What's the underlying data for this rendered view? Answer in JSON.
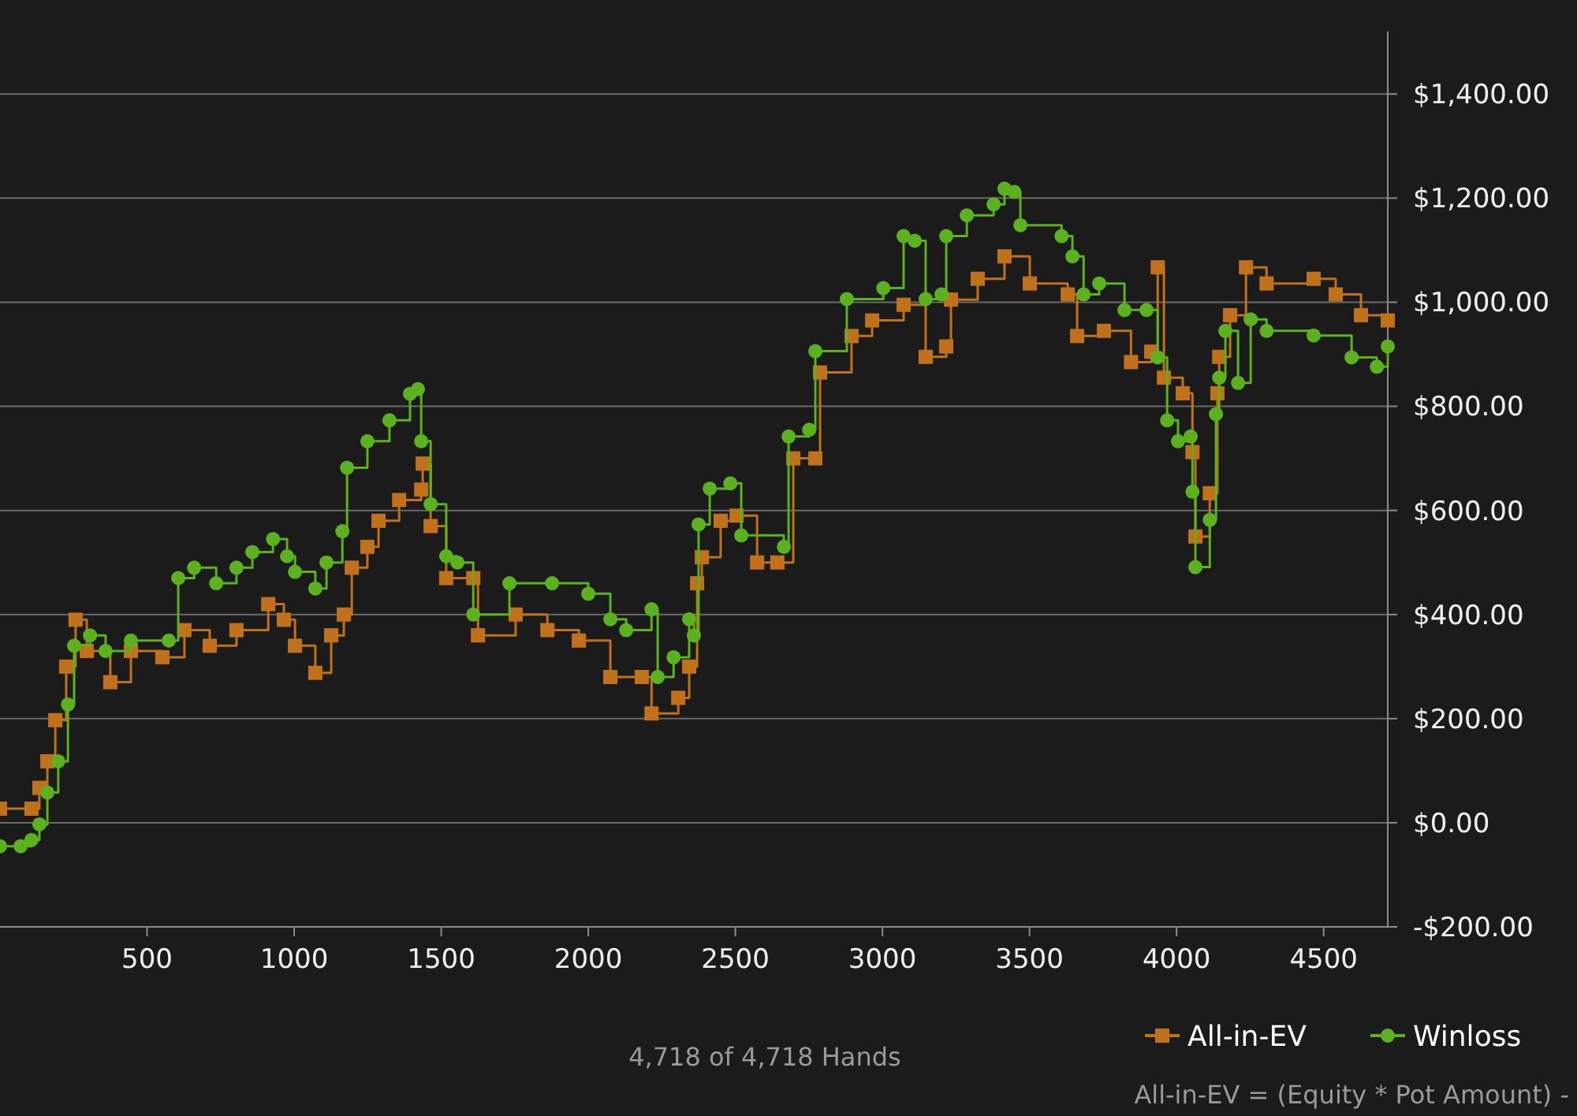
{
  "chart_data": {
    "type": "step",
    "annotations": [
      "4,718 of 4,718 Hands",
      "All-in-EV = (Equity * Pot Amount) -"
    ],
    "xlim": [
      0,
      4718
    ],
    "xticks": [
      500,
      1000,
      1500,
      2000,
      2500,
      3000,
      3500,
      4000,
      4500
    ],
    "ylim": [
      -200,
      1520
    ],
    "yticks": [
      {
        "value": -200,
        "label": "-$200.00"
      },
      {
        "value": 0,
        "label": "$0.00"
      },
      {
        "value": 200,
        "label": "$200.00"
      },
      {
        "value": 400,
        "label": "$400.00"
      },
      {
        "value": 600,
        "label": "$600.00"
      },
      {
        "value": 800,
        "label": "$800.00"
      },
      {
        "value": 1000,
        "label": "$1,000.00"
      },
      {
        "value": 1200,
        "label": "$1,200.00"
      },
      {
        "value": 1400,
        "label": "$1,400.00"
      }
    ],
    "grid": "y",
    "legend": "bottom right",
    "line_style": "solid",
    "series": [
      {
        "name": "All-in-EV",
        "color": "#c0711a",
        "marker": "square",
        "x": [
          0,
          107,
          134,
          161,
          188,
          225,
          257,
          295,
          375,
          445,
          552,
          627,
          713,
          804,
          912,
          965,
          1003,
          1072,
          1126,
          1169,
          1196,
          1249,
          1287,
          1357,
          1432,
          1437,
          1464,
          1517,
          1609,
          1625,
          1753,
          1861,
          1968,
          2075,
          2182,
          2215,
          2306,
          2343,
          2370,
          2386,
          2450,
          2504,
          2574,
          2643,
          2697,
          2772,
          2788,
          2895,
          2965,
          3072,
          3147,
          3217,
          3233,
          3324,
          3415,
          3501,
          3630,
          3662,
          3753,
          3845,
          3914,
          3936,
          3957,
          4021,
          4054,
          4064,
          4113,
          4139,
          4145,
          4182,
          4236,
          4306,
          4466,
          4541,
          4627,
          4718
        ],
        "values": [
          27,
          27,
          67,
          118,
          197,
          300,
          390,
          330,
          270,
          330,
          318,
          370,
          340,
          370,
          420,
          390,
          340,
          288,
          360,
          400,
          490,
          530,
          580,
          620,
          640,
          690,
          570,
          470,
          470,
          360,
          400,
          370,
          350,
          280,
          280,
          210,
          240,
          300,
          460,
          510,
          580,
          590,
          500,
          500,
          700,
          700,
          865,
          935,
          965,
          995,
          895,
          915,
          1005,
          1045,
          1088,
          1036,
          1015,
          935,
          945,
          885,
          905,
          1067,
          855,
          825,
          712,
          550,
          633,
          825,
          895,
          975,
          1067,
          1036,
          1045,
          1015,
          975,
          965
        ]
      },
      {
        "name": "Winloss",
        "color": "#5cb21e",
        "marker": "circle",
        "x": [
          0,
          70,
          107,
          134,
          161,
          198,
          231,
          252,
          306,
          359,
          445,
          574,
          606,
          660,
          735,
          804,
          858,
          928,
          976,
          1003,
          1072,
          1110,
          1164,
          1180,
          1249,
          1324,
          1394,
          1421,
          1432,
          1464,
          1517,
          1555,
          1609,
          1732,
          1877,
          2000,
          2075,
          2129,
          2215,
          2236,
          2290,
          2343,
          2359,
          2375,
          2413,
          2483,
          2520,
          2665,
          2681,
          2751,
          2772,
          2879,
          3003,
          3072,
          3110,
          3147,
          3201,
          3217,
          3287,
          3378,
          3415,
          3448,
          3469,
          3609,
          3646,
          3684,
          3737,
          3823,
          3898,
          3936,
          3968,
          4005,
          4048,
          4054,
          4064,
          4113,
          4134,
          4145,
          4166,
          4209,
          4252,
          4306,
          4466,
          4595,
          4681,
          4718
        ],
        "values": [
          -45,
          -45,
          -33,
          -3,
          58,
          118,
          227,
          340,
          360,
          330,
          350,
          350,
          470,
          490,
          460,
          490,
          520,
          545,
          512,
          482,
          450,
          500,
          560,
          682,
          733,
          773,
          824,
          833,
          733,
          612,
          512,
          500,
          400,
          460,
          460,
          440,
          391,
          370,
          410,
          280,
          318,
          391,
          360,
          573,
          642,
          652,
          552,
          530,
          742,
          755,
          906,
          1006,
          1027,
          1127,
          1118,
          1006,
          1015,
          1127,
          1167,
          1188,
          1218,
          1212,
          1148,
          1127,
          1088,
          1015,
          1036,
          985,
          985,
          894,
          773,
          733,
          742,
          636,
          491,
          582,
          785,
          855,
          945,
          845,
          967,
          945,
          936,
          894,
          876,
          915
        ]
      }
    ]
  }
}
